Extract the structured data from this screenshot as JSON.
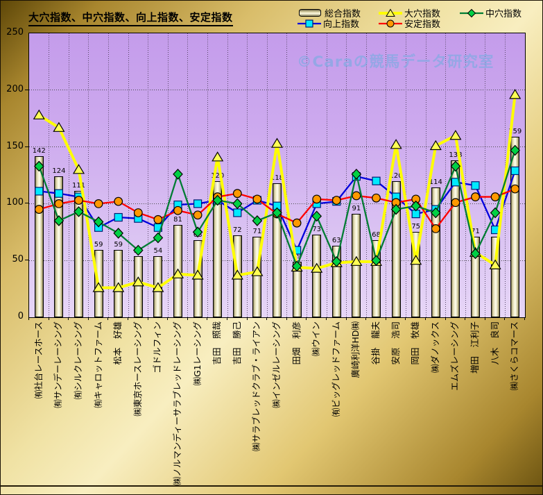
{
  "title": "大穴指数、中穴指数、向上指数、安定指数",
  "watermark": "©Caraの競馬データ研究室",
  "y_axis": {
    "ticks": [
      "250",
      "200",
      "150",
      "100",
      "50",
      "0"
    ]
  },
  "legend": {
    "items": [
      {
        "id": "total-index",
        "label": "総合指数",
        "swatch": "bar"
      },
      {
        "id": "longshot-index",
        "label": "大穴指数",
        "swatch": "triangle"
      },
      {
        "id": "mid-upset-index",
        "label": "中穴指数",
        "swatch": "diamond"
      },
      {
        "id": "rise-index",
        "label": "向上指数",
        "swatch": "square"
      },
      {
        "id": "stability-index",
        "label": "安定指数",
        "swatch": "circle"
      }
    ]
  },
  "chart_data": {
    "type": "bar+line combo",
    "title": "大穴指数、中穴指数、向上指数、安定指数",
    "ylim": [
      0,
      250
    ],
    "yticks": [
      0,
      50,
      100,
      150,
      200,
      250
    ],
    "grid": "dotted horizontal every 50, dotted vertical per category",
    "legend_position": "top",
    "categories": [
      "㈲社台レースホース",
      "㈲サンデーレーシング",
      "㈲シルクレーシング",
      "㈲キャロットファーム",
      "松本　好雄",
      "㈱東京ホースレーシング",
      "ゴドルフィン",
      "㈱ノルマンディーサラブレッドレーシング",
      "㈱G1レーシング",
      "吉田　照哉",
      "吉田　勝己",
      "㈱サラブレッドクラブ・ライアン",
      "㈱インゼルレーシング",
      "田畑　利彦",
      "㈱ウイン",
      "㈲ビッグレッドファーム",
      "廣崎利洋HD㈱",
      "谷掛　龍夫",
      "安原　浩司",
      "岡田　牧雄",
      "㈱ダノックス",
      "エムズレーシング",
      "増田　江利子",
      "八木　良司",
      "㈱さくらコマース"
    ],
    "series": [
      {
        "id": "total-index",
        "name": "総合指数",
        "chart_type": "bar",
        "bar_fill": "#f7f3d8",
        "labels_shown": true,
        "values": [
          142,
          124,
          111,
          59,
          59,
          54,
          54,
          81,
          68,
          120,
          72,
          71,
          118,
          49,
          73,
          63,
          91,
          68,
          120,
          75,
          114,
          138,
          71,
          71,
          159
        ]
      },
      {
        "id": "rise-index",
        "name": "向上指数",
        "chart_type": "line",
        "marker": "square",
        "line_color": "#0000dd",
        "marker_fill": "#00eaff",
        "marker_stroke": "#001a70",
        "values": [
          111,
          109,
          106,
          79,
          88,
          87,
          79,
          99,
          100,
          103,
          92,
          103,
          98,
          59,
          100,
          102,
          124,
          120,
          106,
          91,
          95,
          119,
          116,
          77,
          129
        ]
      },
      {
        "id": "longshot-index",
        "name": "大穴指数",
        "chart_type": "line",
        "marker": "triangle",
        "line_color": "#ffff00",
        "marker_fill": "#ffff55",
        "marker_stroke": "#000000",
        "values": [
          178,
          167,
          130,
          26,
          26,
          31,
          26,
          38,
          37,
          141,
          37,
          40,
          153,
          44,
          43,
          48,
          49,
          49,
          152,
          50,
          151,
          160,
          57,
          46,
          196
        ]
      },
      {
        "id": "stability-index",
        "name": "安定指数",
        "chart_type": "line",
        "marker": "circle",
        "line_color": "#ff0000",
        "marker_fill": "#ff9900",
        "marker_stroke": "#000000",
        "values": [
          95,
          100,
          103,
          100,
          102,
          92,
          86,
          94,
          90,
          106,
          109,
          104,
          91,
          83,
          104,
          103,
          107,
          105,
          101,
          104,
          78,
          101,
          106,
          106,
          113
        ]
      },
      {
        "id": "mid-upset-index",
        "name": "中穴指数",
        "chart_type": "line",
        "marker": "diamond",
        "line_color": "#007c33",
        "marker_fill": "#00d044",
        "marker_stroke": "#000000",
        "values": [
          133,
          85,
          93,
          84,
          74,
          59,
          70,
          126,
          75,
          103,
          100,
          85,
          92,
          45,
          89,
          49,
          126,
          50,
          95,
          98,
          92,
          133,
          56,
          92,
          147
        ]
      }
    ]
  }
}
